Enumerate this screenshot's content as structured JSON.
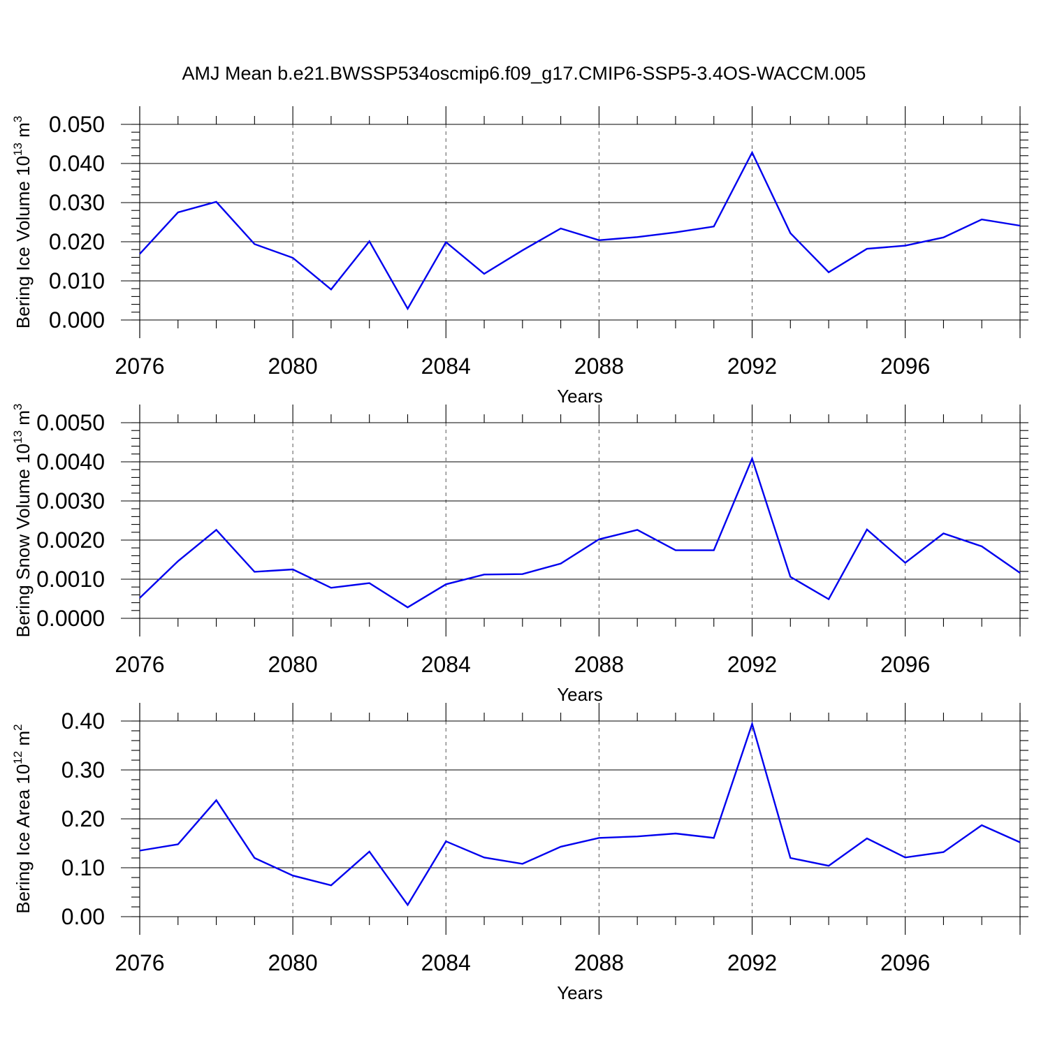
{
  "title": "AMJ Mean b.e21.BWSSP534oscmip6.f09_g17.CMIP6-SSP5-3.4OS-WACCM.005",
  "line_color": "#0000ee",
  "chart_data": [
    {
      "type": "line",
      "ylabel": "Bering Ice Volume 10",
      "ylabel_exp": "13",
      "ylabel_unit": " m",
      "ylabel_unit_exp": "3",
      "xlabel": "Years",
      "xlim": [
        2076,
        2099
      ],
      "ylim": [
        0,
        0.05
      ],
      "x_ticks": [
        2076,
        2080,
        2084,
        2088,
        2092,
        2096
      ],
      "x_tick_labels": [
        "2076",
        "2080",
        "2084",
        "2088",
        "2092",
        "2096"
      ],
      "y_ticks": [
        0,
        0.01,
        0.02,
        0.03,
        0.04,
        0.05
      ],
      "y_tick_labels": [
        "0.000",
        "0.010",
        "0.020",
        "0.030",
        "0.040",
        "0.050"
      ],
      "y_minor_step": 0.002,
      "grid": "vertical dashed at major x ticks",
      "x": [
        2076,
        2077,
        2078,
        2079,
        2080,
        2081,
        2082,
        2083,
        2084,
        2085,
        2086,
        2087,
        2088,
        2089,
        2090,
        2091,
        2092,
        2093,
        2094,
        2095,
        2096,
        2097,
        2098,
        2099
      ],
      "values": [
        0.0169,
        0.0275,
        0.0302,
        0.0194,
        0.0159,
        0.0078,
        0.0201,
        0.0029,
        0.0199,
        0.0118,
        0.0178,
        0.0234,
        0.0204,
        0.0212,
        0.0224,
        0.0239,
        0.0428,
        0.0222,
        0.0122,
        0.0182,
        0.019,
        0.0211,
        0.0257,
        0.0241
      ]
    },
    {
      "type": "line",
      "ylabel": "Bering Snow Volume 10",
      "ylabel_exp": "13",
      "ylabel_unit": " m",
      "ylabel_unit_exp": "3",
      "xlabel": "Years",
      "xlim": [
        2076,
        2099
      ],
      "ylim": [
        0,
        0.005
      ],
      "x_ticks": [
        2076,
        2080,
        2084,
        2088,
        2092,
        2096
      ],
      "x_tick_labels": [
        "2076",
        "2080",
        "2084",
        "2088",
        "2092",
        "2096"
      ],
      "y_ticks": [
        0,
        0.001,
        0.002,
        0.003,
        0.004,
        0.005
      ],
      "y_tick_labels": [
        "0.0000",
        "0.0010",
        "0.0020",
        "0.0030",
        "0.0040",
        "0.0050"
      ],
      "y_minor_step": 0.0002,
      "grid": "vertical dashed at major x ticks",
      "x": [
        2076,
        2077,
        2078,
        2079,
        2080,
        2081,
        2082,
        2083,
        2084,
        2085,
        2086,
        2087,
        2088,
        2089,
        2090,
        2091,
        2092,
        2093,
        2094,
        2095,
        2096,
        2097,
        2098,
        2099
      ],
      "values": [
        0.00052,
        0.00146,
        0.00226,
        0.00119,
        0.00125,
        0.00078,
        0.0009,
        0.00028,
        0.00087,
        0.00112,
        0.00113,
        0.0014,
        0.00202,
        0.00226,
        0.00174,
        0.00174,
        0.00408,
        0.00106,
        0.00049,
        0.00227,
        0.00142,
        0.00217,
        0.00184,
        0.00116
      ]
    },
    {
      "type": "line",
      "ylabel": "Bering Ice Area 10",
      "ylabel_exp": "12",
      "ylabel_unit": " m",
      "ylabel_unit_exp": "2",
      "xlabel": "Years",
      "xlim": [
        2076,
        2099
      ],
      "ylim": [
        0,
        0.4
      ],
      "x_ticks": [
        2076,
        2080,
        2084,
        2088,
        2092,
        2096
      ],
      "x_tick_labels": [
        "2076",
        "2080",
        "2084",
        "2088",
        "2092",
        "2096"
      ],
      "y_ticks": [
        0,
        0.1,
        0.2,
        0.3,
        0.4
      ],
      "y_tick_labels": [
        "0.00",
        "0.10",
        "0.20",
        "0.30",
        "0.40"
      ],
      "y_minor_step": 0.02,
      "grid": "vertical dashed at major x ticks",
      "x": [
        2076,
        2077,
        2078,
        2079,
        2080,
        2081,
        2082,
        2083,
        2084,
        2085,
        2086,
        2087,
        2088,
        2089,
        2090,
        2091,
        2092,
        2093,
        2094,
        2095,
        2096,
        2097,
        2098,
        2099
      ],
      "values": [
        0.135,
        0.148,
        0.238,
        0.12,
        0.084,
        0.064,
        0.133,
        0.024,
        0.154,
        0.121,
        0.108,
        0.143,
        0.161,
        0.164,
        0.17,
        0.161,
        0.394,
        0.12,
        0.104,
        0.16,
        0.121,
        0.132,
        0.187,
        0.152
      ]
    }
  ]
}
